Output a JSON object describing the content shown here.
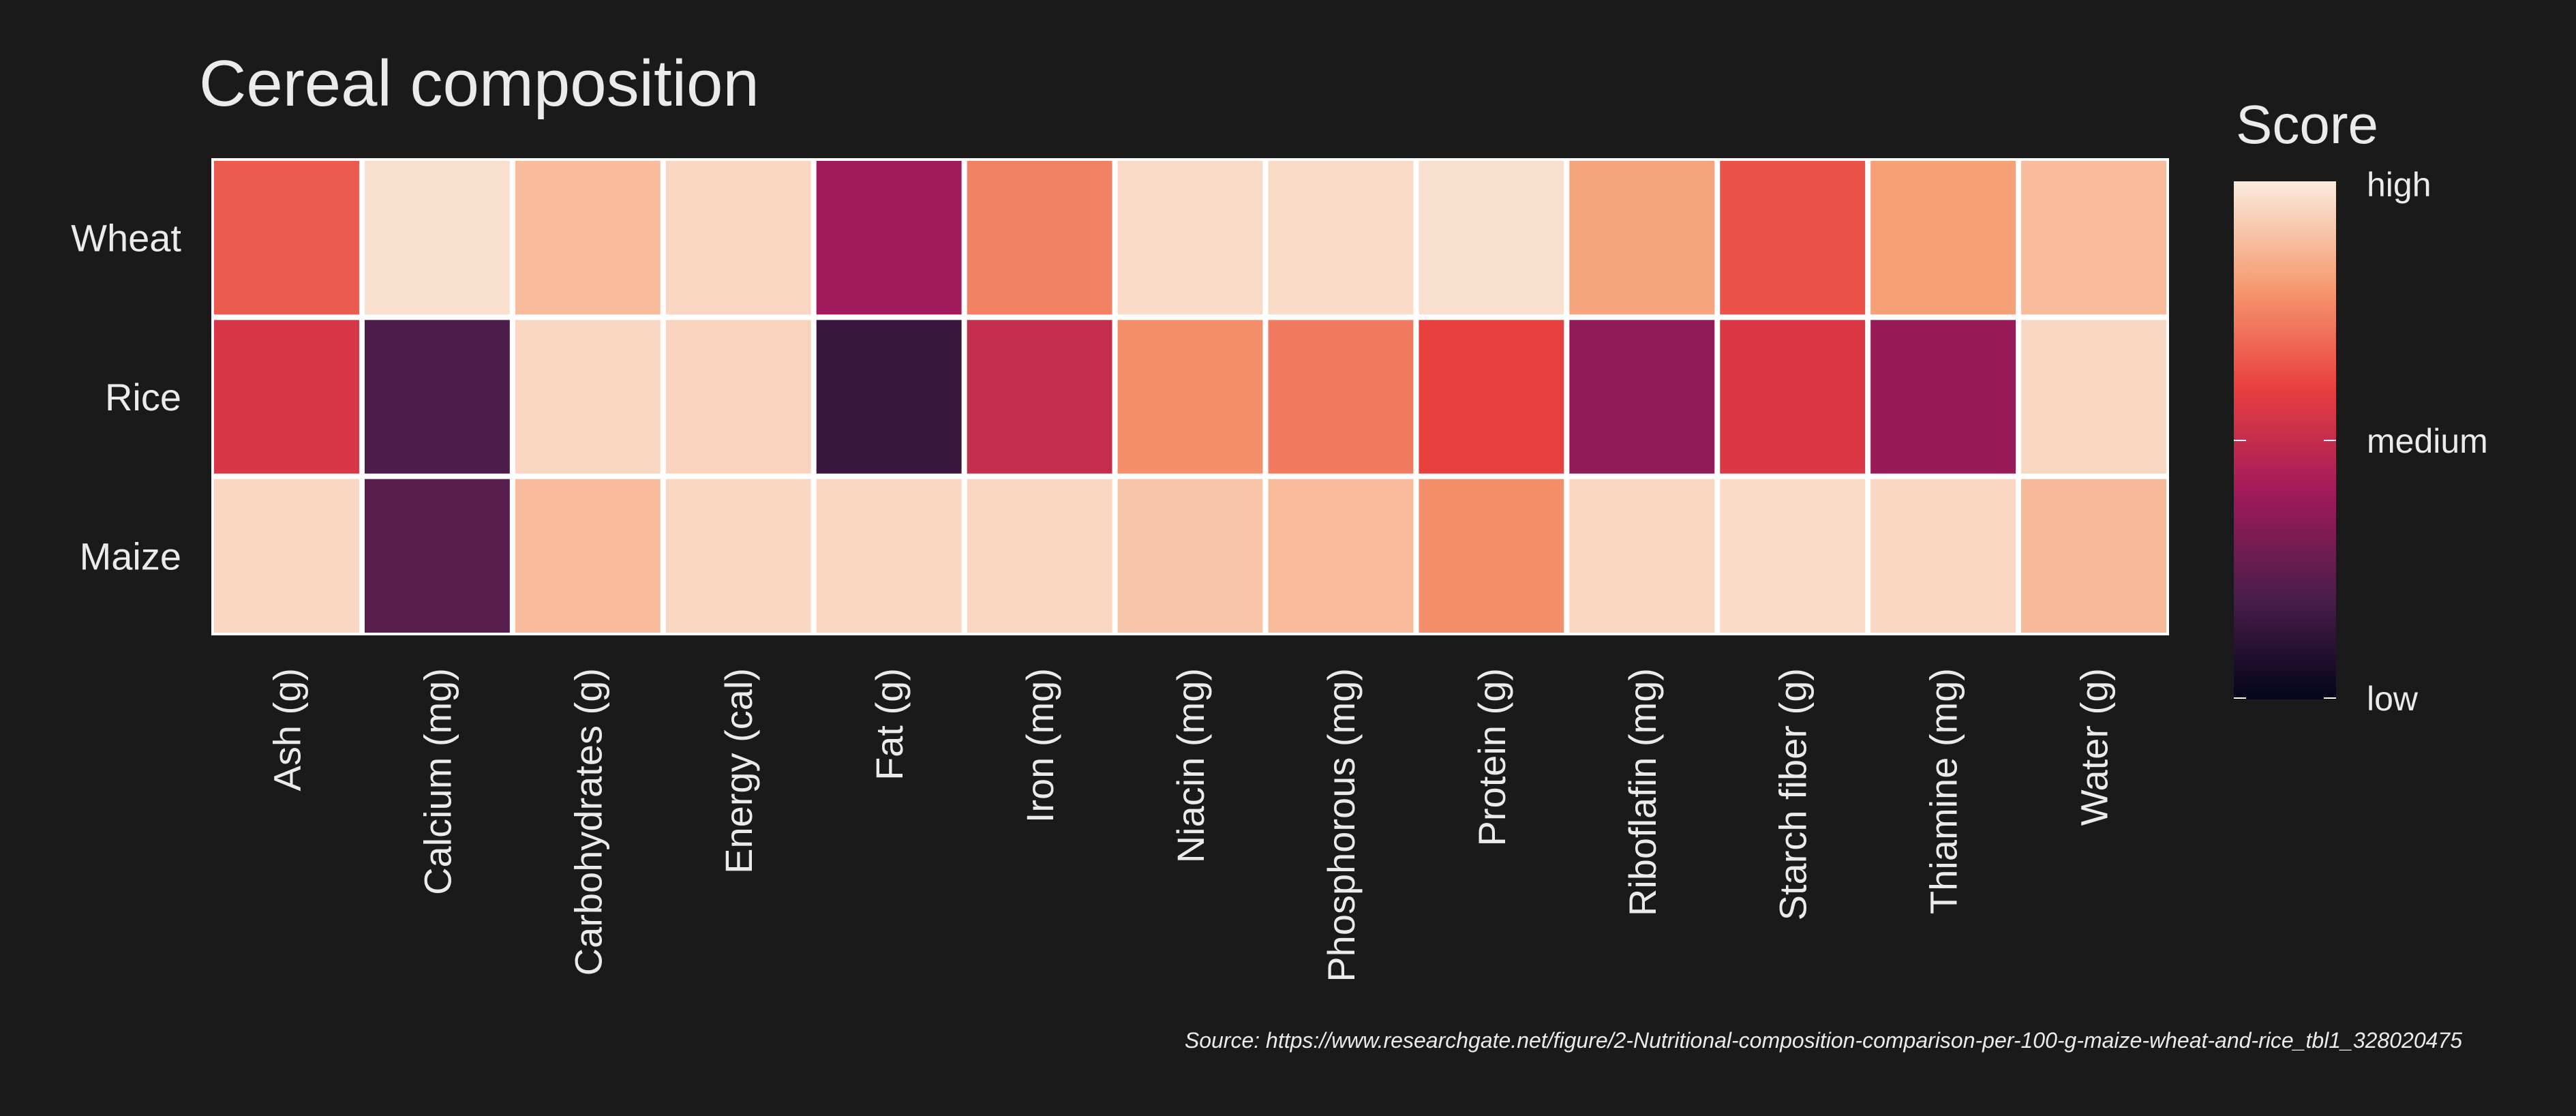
{
  "chart_data": {
    "type": "heatmap",
    "title": "Cereal composition",
    "rows": [
      "Wheat",
      "Rice",
      "Maize"
    ],
    "columns": [
      "Ash (g)",
      "Calcium (mg)",
      "Carbohydrates (g)",
      "Energy (cal)",
      "Fat (g)",
      "Iron (mg)",
      "Niacin (mg)",
      "Phosphorous (mg)",
      "Protein (g)",
      "Riboflafin (mg)",
      "Starch fiber (g)",
      "Thiamine (mg)",
      "Water (g)"
    ],
    "values": [
      [
        0.66,
        0.97,
        0.88,
        0.95,
        0.4,
        0.74,
        0.96,
        0.96,
        0.97,
        0.82,
        0.64,
        0.81,
        0.88
      ],
      [
        0.55,
        0.2,
        0.95,
        0.94,
        0.15,
        0.5,
        0.77,
        0.73,
        0.6,
        0.36,
        0.56,
        0.38,
        0.95
      ],
      [
        0.95,
        0.23,
        0.88,
        0.95,
        0.95,
        0.95,
        0.9,
        0.88,
        0.77,
        0.95,
        0.96,
        0.95,
        0.87
      ]
    ],
    "legend": {
      "title": "Score",
      "labels": [
        "high",
        "medium",
        "low"
      ],
      "position": "right"
    },
    "colorscale": [
      "#03051a",
      "#4c1d4b",
      "#a11a5b",
      "#e83f3f",
      "#f69c73",
      "#faebdd"
    ],
    "grid": false,
    "caption": "Source: https://www.researchgate.net/figure/2-Nutritional-composition-comparison-per-100-g-maize-wheat-and-rice_tbl1_328020475"
  },
  "colors": {
    "background": "#1a1a1a",
    "text": "#ebebeb",
    "cell_border": "#ffffff"
  }
}
